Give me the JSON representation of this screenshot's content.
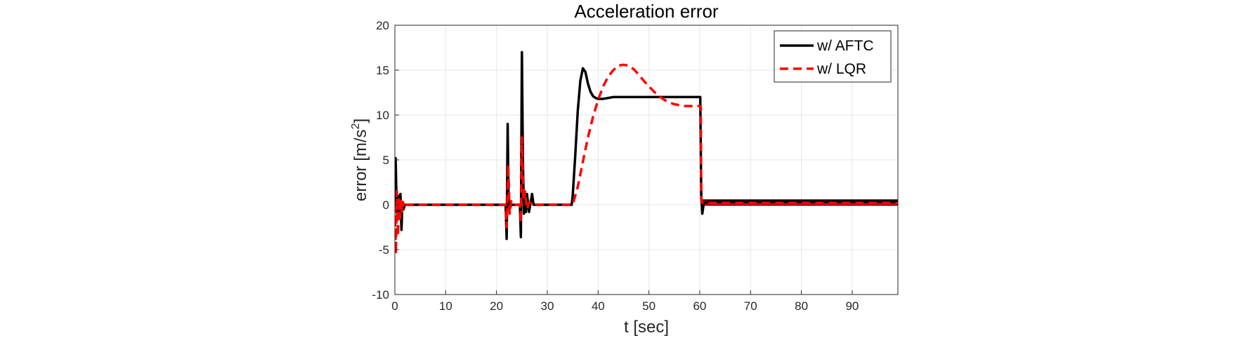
{
  "chart_data": {
    "type": "line",
    "title": "Acceleration error",
    "xlabel": "t [sec]",
    "ylabel_main": "error [m/s",
    "ylabel_sup": "2",
    "ylabel_close": "]",
    "xlim": [
      0,
      99
    ],
    "ylim": [
      -10,
      20
    ],
    "xticks": [
      0,
      10,
      20,
      30,
      40,
      50,
      60,
      70,
      80,
      90
    ],
    "yticks": [
      -10,
      -5,
      0,
      5,
      10,
      15,
      20
    ],
    "grid": true,
    "legend_position": "top-right",
    "colors": {
      "aftc": "#000000",
      "lqr": "#ff0000",
      "grid": "#e6e6e6",
      "axis": "#262626"
    },
    "series": [
      {
        "name": "w/ AFTC",
        "style": "solid",
        "x": [
          0,
          0.15,
          0.3,
          0.5,
          0.7,
          0.9,
          1.1,
          1.3,
          1.5,
          1.7,
          2.0,
          3,
          10,
          20,
          21.8,
          22.0,
          22.2,
          22.4,
          22.6,
          22.8,
          23.0,
          23.3,
          24.0,
          24.6,
          24.8,
          25.0,
          25.2,
          25.4,
          25.6,
          25.8,
          26.0,
          26.4,
          26.8,
          27.0,
          27.3,
          28,
          30,
          34.8,
          35.0,
          35.5,
          36.0,
          36.5,
          37.0,
          37.5,
          38.0,
          38.5,
          39.0,
          39.5,
          40.0,
          41,
          42,
          43,
          44,
          45,
          47,
          49,
          55,
          60.0,
          60.1,
          60.3,
          60.5,
          60.8,
          62,
          70,
          80,
          90,
          99
        ],
        "y": [
          0,
          5.2,
          1.0,
          -1.5,
          1.0,
          -0.8,
          1.2,
          -2.8,
          0.3,
          -0.5,
          0,
          0,
          0,
          0,
          0,
          -3.8,
          9.0,
          -0.5,
          0.3,
          -0.2,
          0,
          0,
          0,
          0,
          -3.6,
          17.0,
          5.0,
          -1.0,
          0.8,
          -0.8,
          1.2,
          -0.8,
          0.5,
          1.2,
          0,
          0,
          0,
          0,
          1.0,
          5.5,
          10.5,
          13.8,
          15.2,
          14.8,
          13.5,
          12.6,
          12.1,
          11.9,
          11.8,
          11.8,
          11.9,
          12.0,
          12.0,
          12.0,
          12.0,
          12.0,
          12.0,
          12.0,
          12.0,
          1.0,
          -1.0,
          0.2,
          0.3,
          0.3,
          0.3,
          0.3,
          0.3
        ]
      },
      {
        "name": "w/ LQR",
        "style": "dashed",
        "x": [
          0,
          0.2,
          0.4,
          0.6,
          0.8,
          1.0,
          1.2,
          1.4,
          1.6,
          1.8,
          2.0,
          3,
          10,
          20,
          21.8,
          22.0,
          22.3,
          22.6,
          22.9,
          23.2,
          24.0,
          24.6,
          24.8,
          25.0,
          25.3,
          25.6,
          26.0,
          26.5,
          27,
          30,
          35.0,
          36,
          37,
          38,
          39,
          40,
          41,
          42,
          43,
          44,
          45,
          46,
          47,
          48,
          49,
          50,
          51,
          52,
          53,
          54,
          55,
          56,
          57,
          58,
          59,
          60.2,
          60.3,
          60.5,
          61,
          70,
          80,
          90,
          99
        ],
        "y": [
          0,
          -5.5,
          1.5,
          -3.5,
          0.8,
          -1.5,
          0.6,
          -0.8,
          0.3,
          -0.3,
          0,
          0,
          0,
          0,
          0,
          -2.5,
          4.5,
          -1.0,
          0.4,
          0,
          0,
          0,
          -2.0,
          7.5,
          0.5,
          1.5,
          -0.5,
          0.3,
          0,
          0,
          0,
          2.0,
          4.8,
          7.5,
          9.8,
          11.7,
          13.2,
          14.3,
          15.0,
          15.5,
          15.6,
          15.5,
          15.1,
          14.5,
          13.8,
          13.2,
          12.6,
          12.1,
          11.7,
          11.4,
          11.2,
          11.1,
          11.0,
          11.0,
          11.0,
          11.0,
          0.5,
          0.2,
          0.2,
          0.2,
          0.2,
          0.2,
          0.2
        ]
      }
    ]
  }
}
